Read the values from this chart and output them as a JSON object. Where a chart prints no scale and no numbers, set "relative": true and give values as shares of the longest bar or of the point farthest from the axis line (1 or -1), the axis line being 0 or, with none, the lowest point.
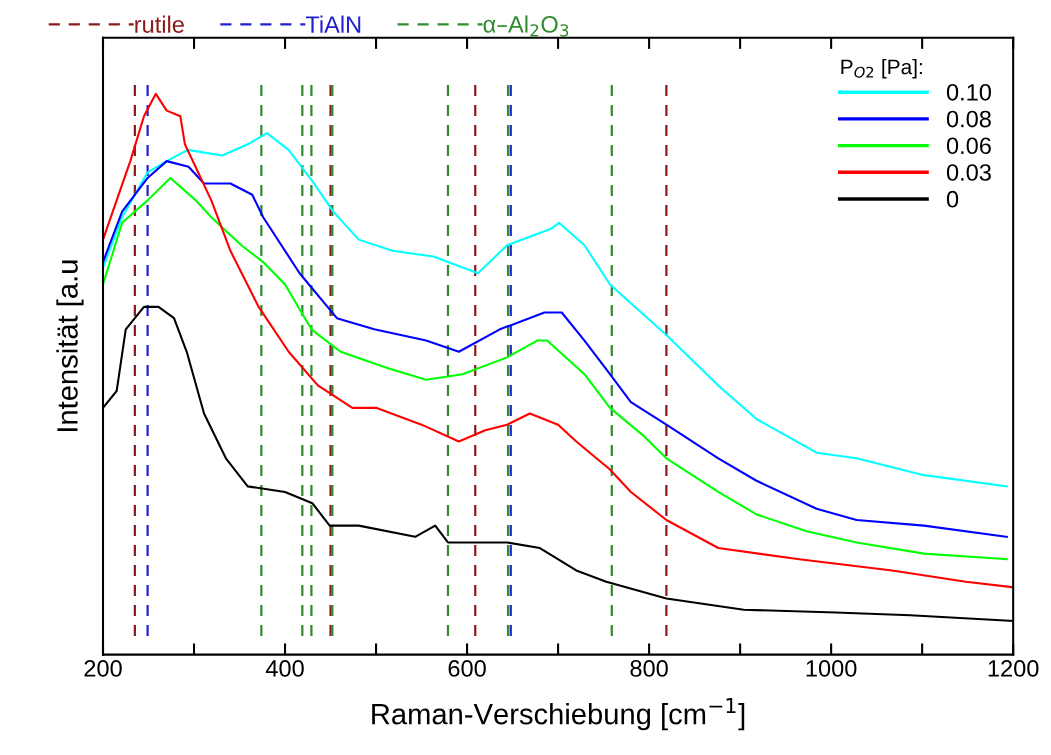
{
  "chart_data": {
    "type": "line",
    "xlabel": "Raman-Verschiebung [cm$^{−1}$]",
    "ylabel": "Intensität [a.u",
    "legend_title": "P$_{O2}$ [Pa]:",
    "relative": true,
    "legend": "top right",
    "grid": false,
    "tick_labels": "x",
    "line_style": "solid",
    "xlim": [
      200,
      1200
    ],
    "xticks": [
      200,
      {
        "value": 300,
        "label": null
      },
      400,
      {
        "value": 500,
        "label": null
      },
      600,
      {
        "value": 700,
        "label": null
      },
      800,
      {
        "value": 900,
        "label": null
      },
      1000,
      {
        "value": 1100,
        "label": null
      },
      1200
    ],
    "series": [
      {
        "name": "0.10",
        "color": "#00ffff",
        "x": [
          200,
          221,
          249,
          270,
          293,
          331,
          359,
          380,
          404,
          432,
          453,
          481,
          518,
          563,
          612,
          644,
          693,
          701,
          729,
          757,
          819,
          876,
          918,
          984,
          1028,
          1102,
          1193
        ],
        "values": [
          0.69,
          0.78,
          0.86,
          0.88,
          0.9,
          0.89,
          0.91,
          0.93,
          0.9,
          0.84,
          0.79,
          0.74,
          0.72,
          0.71,
          0.68,
          0.73,
          0.76,
          0.77,
          0.73,
          0.66,
          0.57,
          0.48,
          0.42,
          0.36,
          0.35,
          0.32,
          0.3
        ]
      },
      {
        "name": "0.08",
        "color": "#0000ff",
        "x": [
          200,
          221,
          249,
          270,
          294,
          311,
          340,
          364,
          376,
          416,
          457,
          498,
          555,
          591,
          636,
          685,
          704,
          729,
          757,
          780,
          819,
          876,
          918,
          984,
          1028,
          1102,
          1193
        ],
        "values": [
          0.7,
          0.79,
          0.85,
          0.88,
          0.87,
          0.84,
          0.84,
          0.82,
          0.78,
          0.68,
          0.6,
          0.58,
          0.56,
          0.54,
          0.58,
          0.61,
          0.61,
          0.56,
          0.5,
          0.45,
          0.41,
          0.35,
          0.31,
          0.26,
          0.24,
          0.23,
          0.21
        ]
      },
      {
        "name": "0.06",
        "color": "#00ff00",
        "x": [
          200,
          221,
          249,
          274,
          302,
          319,
          352,
          376,
          400,
          429,
          461,
          514,
          555,
          595,
          644,
          677,
          688,
          729,
          757,
          794,
          819,
          876,
          918,
          973,
          1028,
          1102,
          1193
        ],
        "values": [
          0.66,
          0.77,
          0.81,
          0.85,
          0.81,
          0.78,
          0.73,
          0.7,
          0.66,
          0.58,
          0.54,
          0.51,
          0.49,
          0.5,
          0.53,
          0.56,
          0.56,
          0.5,
          0.44,
          0.39,
          0.35,
          0.29,
          0.25,
          0.22,
          0.2,
          0.18,
          0.17
        ]
      },
      {
        "name": "0.03",
        "color": "#ff0000",
        "x": [
          200,
          215,
          230,
          245,
          258,
          270,
          285,
          290,
          319,
          340,
          371,
          404,
          436,
          474,
          500,
          550,
          591,
          620,
          644,
          669,
          700,
          720,
          757,
          780,
          819,
          876,
          965,
          1067,
          1148,
          1200
        ],
        "values": [
          0.74,
          0.81,
          0.88,
          0.96,
          1.0,
          0.97,
          0.96,
          0.91,
          0.81,
          0.72,
          0.62,
          0.54,
          0.48,
          0.44,
          0.44,
          0.41,
          0.38,
          0.4,
          0.41,
          0.43,
          0.41,
          0.38,
          0.33,
          0.29,
          0.24,
          0.19,
          0.17,
          0.15,
          0.13,
          0.12
        ]
      },
      {
        "name": "0",
        "color": "#000000",
        "x": [
          200,
          215,
          225,
          245,
          261,
          278,
          292,
          311,
          335,
          359,
          400,
          430,
          449,
          481,
          543,
          565,
          579,
          644,
          680,
          720,
          753,
          819,
          904,
          1005,
          1087,
          1200
        ],
        "values": [
          0.44,
          0.47,
          0.58,
          0.62,
          0.62,
          0.6,
          0.54,
          0.43,
          0.35,
          0.3,
          0.29,
          0.27,
          0.23,
          0.23,
          0.21,
          0.23,
          0.2,
          0.2,
          0.19,
          0.15,
          0.13,
          0.1,
          0.08,
          0.075,
          0.07,
          0.06
        ]
      }
    ],
    "ref_lines": [
      {
        "axis": "x",
        "value": 235,
        "label": "rutile",
        "color": "#8b1a1a",
        "line_style": "dashed"
      },
      {
        "axis": "x",
        "value": 450,
        "color": "#8b1a1a",
        "line_style": "dashed"
      },
      {
        "axis": "x",
        "value": 609,
        "color": "#8b1a1a",
        "line_style": "dashed"
      },
      {
        "axis": "x",
        "value": 819,
        "color": "#8b1a1a",
        "line_style": "dashed"
      },
      {
        "axis": "x",
        "value": 249,
        "label": "TiAlN",
        "color": "#2020d0",
        "line_style": "dashed"
      },
      {
        "axis": "x",
        "value": 648,
        "color": "#2020d0",
        "line_style": "dashed"
      },
      {
        "axis": "x",
        "value": 374,
        "label": "α–Al$_{2}$O$_{3}$",
        "color": "#2e8b2e",
        "line_style": "dashed"
      },
      {
        "axis": "x",
        "value": 419,
        "color": "#2e8b2e",
        "line_style": "dashed"
      },
      {
        "axis": "x",
        "value": 429,
        "color": "#2e8b2e",
        "line_style": "dashed"
      },
      {
        "axis": "x",
        "value": 452,
        "color": "#2e8b2e",
        "line_style": "dashed"
      },
      {
        "axis": "x",
        "value": 579,
        "color": "#2e8b2e",
        "line_style": "dashed"
      },
      {
        "axis": "x",
        "value": 645,
        "color": "#2e8b2e",
        "line_style": "dashed"
      },
      {
        "axis": "x",
        "value": 759,
        "color": "#2e8b2e",
        "line_style": "dashed"
      }
    ]
  }
}
